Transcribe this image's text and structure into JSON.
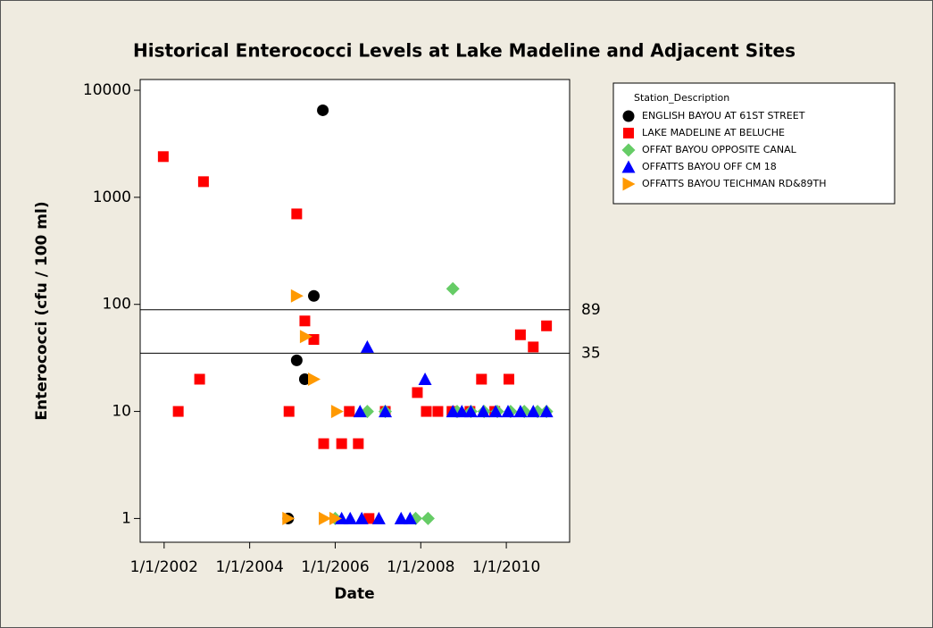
{
  "chart_data": {
    "type": "scatter",
    "title": "Historical Enterococci Levels at Lake Madeline and Adjacent Sites",
    "xlabel": "Date",
    "ylabel": "Enterococci (cfu / 100 ml)",
    "yscale": "log",
    "xlim": [
      2001.44,
      2011.48
    ],
    "xticks": [
      {
        "value": 2002,
        "label": "1/1/2002"
      },
      {
        "value": 2004,
        "label": "1/1/2004"
      },
      {
        "value": 2006,
        "label": "1/1/2006"
      },
      {
        "value": 2008,
        "label": "1/1/2008"
      },
      {
        "value": 2010,
        "label": "1/1/2010"
      }
    ],
    "ylim": [
      0.6,
      12600
    ],
    "yticks": [
      1,
      10,
      100,
      1000,
      10000
    ],
    "reference_lines": [
      89,
      35
    ],
    "legend_title": "Station_Description",
    "legend_position": "right",
    "series": [
      {
        "name": "ENGLISH BAYOU AT 61ST STREET",
        "color": "#000000",
        "marker": "circle",
        "x": [
          2004.9,
          2005.1,
          2005.29,
          2005.5,
          2005.71
        ],
        "values": [
          1,
          30,
          20,
          120,
          6500
        ]
      },
      {
        "name": "LAKE MADELINE AT BELUCHE",
        "color": "#ff0000",
        "marker": "square",
        "x": [
          2001.98,
          2002.33,
          2002.92,
          2002.83,
          2004.92,
          2005.1,
          2005.29,
          2005.5,
          2005.73,
          2006.15,
          2006.33,
          2006.54,
          2006.79,
          2007.17,
          2007.92,
          2008.13,
          2008.4,
          2008.73,
          2009.15,
          2009.42,
          2009.73,
          2010.06,
          2010.33,
          2010.63,
          2010.94
        ],
        "values": [
          2400,
          10,
          1400,
          20,
          10,
          700,
          70,
          47,
          5,
          5,
          10,
          5,
          1,
          10,
          15,
          10,
          10,
          10,
          10,
          20,
          10,
          20,
          52,
          40,
          63
        ]
      },
      {
        "name": "OFFAT BAYOU OPPOSITE CANAL",
        "color": "#66cc66",
        "marker": "diamond",
        "x": [
          2006.0,
          2006.75,
          2007.17,
          2007.88,
          2008.17,
          2008.75,
          2008.85,
          2009.17,
          2009.48,
          2009.79,
          2010.1,
          2010.42,
          2010.73,
          2010.94
        ],
        "values": [
          1,
          10,
          10,
          1,
          1,
          140,
          10,
          10,
          10,
          10,
          10,
          10,
          10,
          10
        ]
      },
      {
        "name": "OFFATTS BAYOU OFF CM 18",
        "color": "#0000ff",
        "marker": "triangle-up",
        "x": [
          2006.15,
          2006.35,
          2006.58,
          2006.62,
          2006.75,
          2007.02,
          2007.17,
          2007.54,
          2007.75,
          2008.1,
          2008.75,
          2008.96,
          2009.17,
          2009.46,
          2009.75,
          2010.04,
          2010.33,
          2010.63,
          2010.94
        ],
        "values": [
          1,
          1,
          10,
          1,
          40,
          1,
          10,
          1,
          1,
          20,
          10,
          10,
          10,
          10,
          10,
          10,
          10,
          10,
          10
        ]
      },
      {
        "name": "OFFATTS BAYOU TEICHMAN RD&89TH",
        "color": "#ff9900",
        "marker": "triangle-right",
        "x": [
          2004.9,
          2005.1,
          2005.31,
          2005.5,
          2005.75,
          2006.04,
          2006.0
        ],
        "values": [
          1,
          120,
          50,
          20,
          1,
          10,
          1
        ]
      }
    ]
  }
}
